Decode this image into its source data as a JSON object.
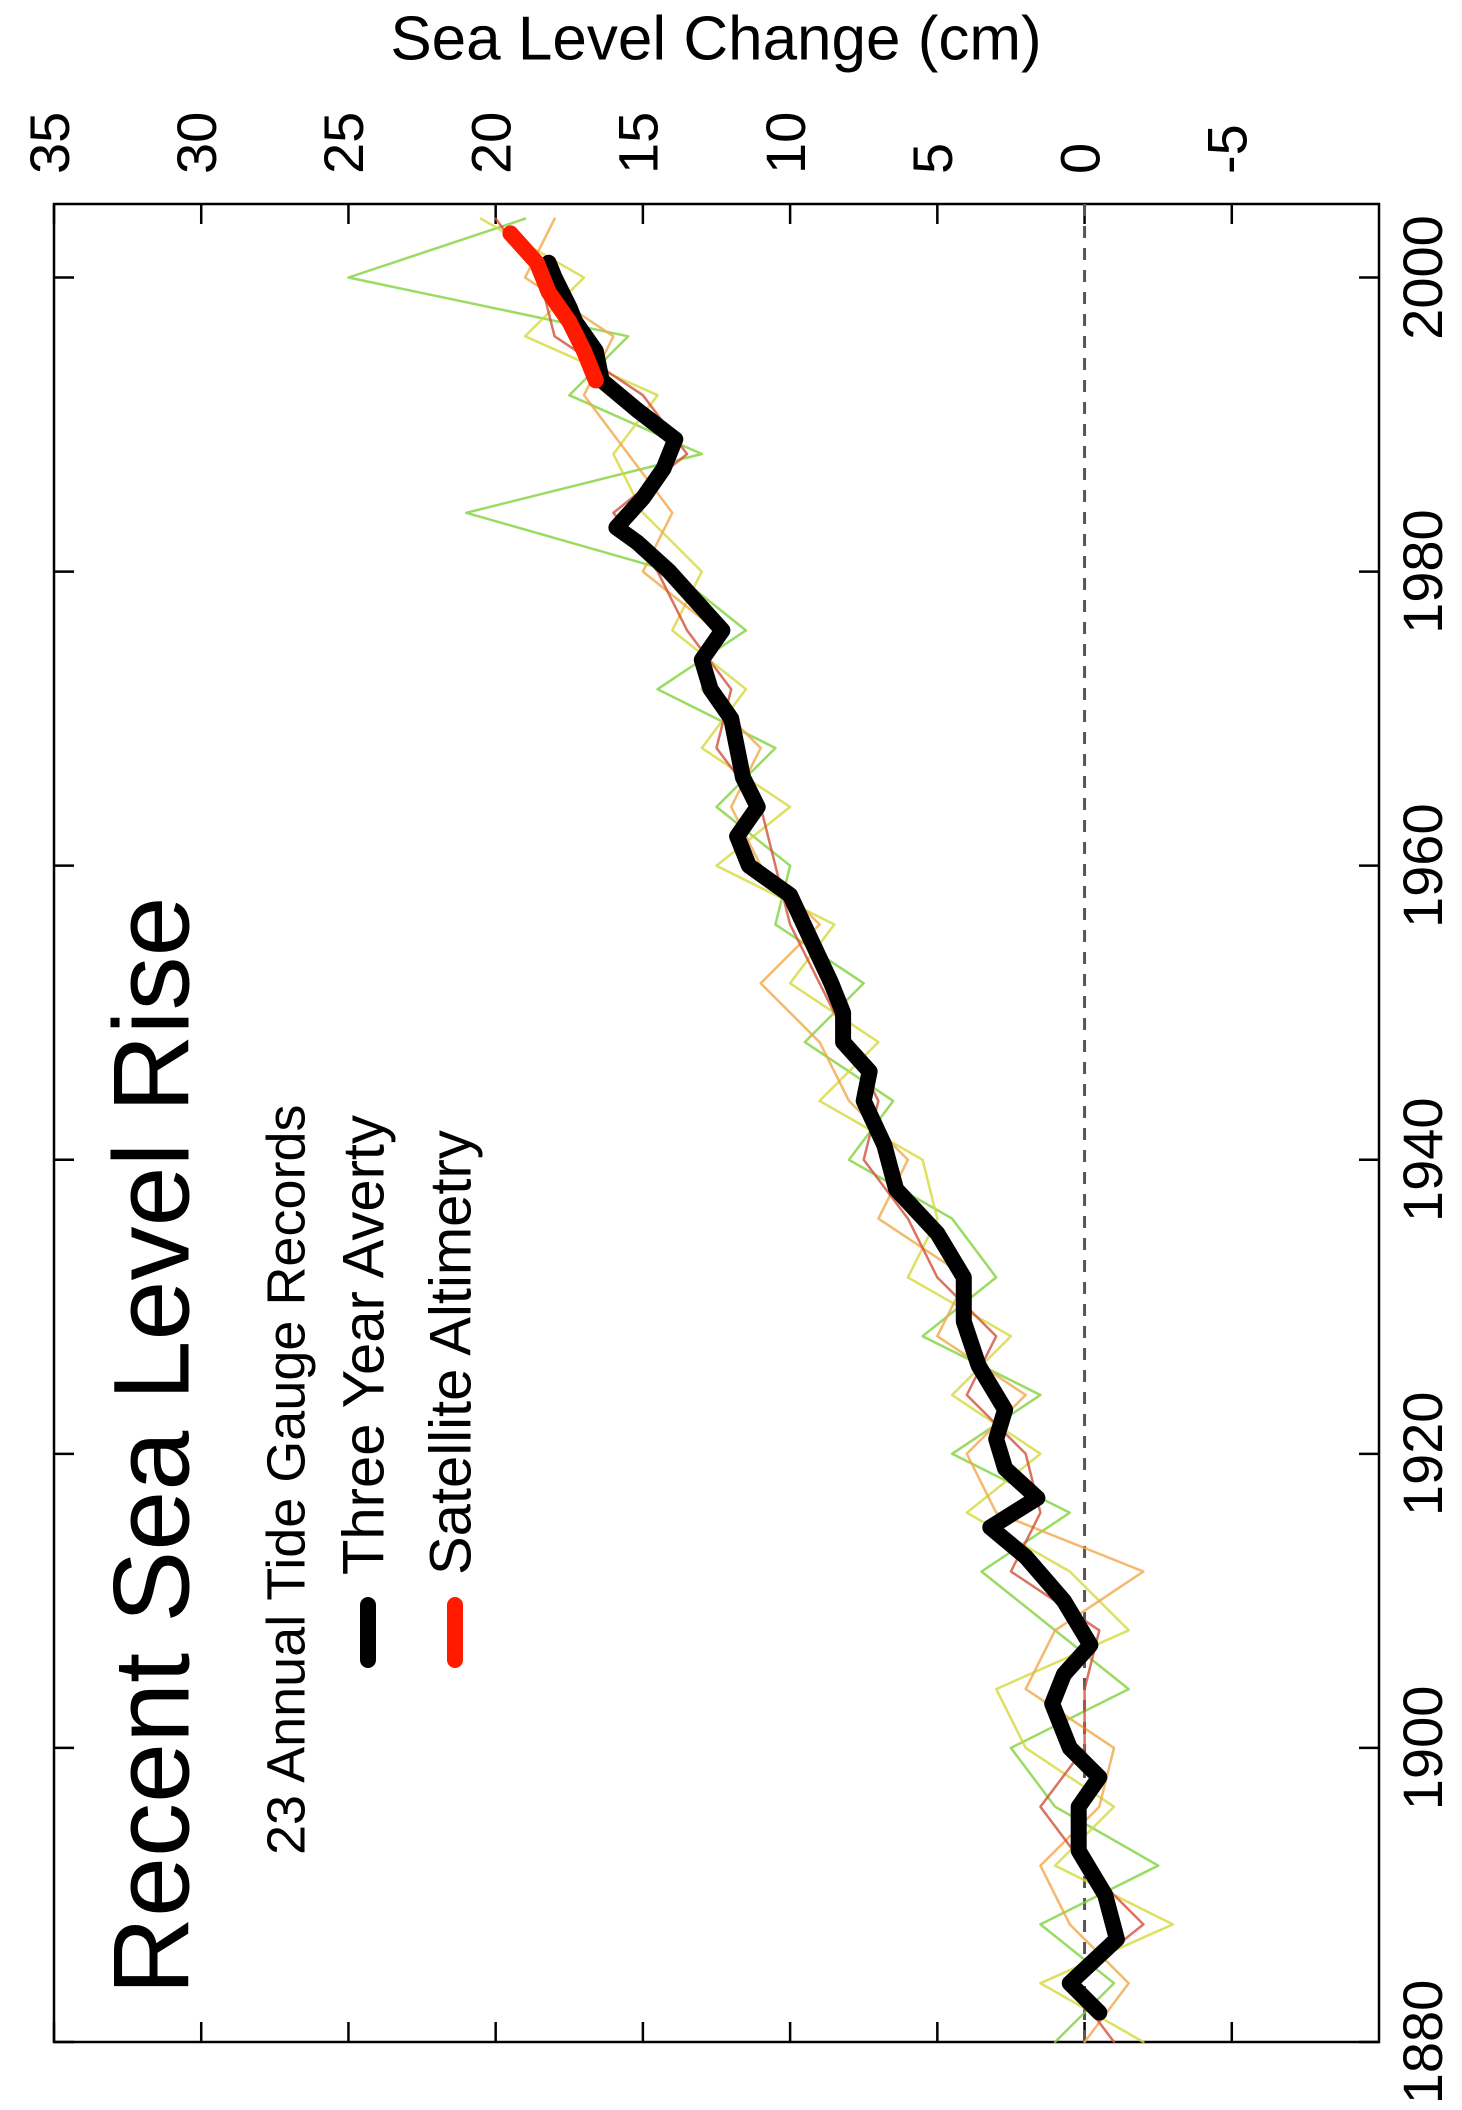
{
  "chart_data": {
    "type": "line",
    "title": "Recent Sea Level Rise",
    "subtitle": "23 Annual Tide Gauge Records",
    "ylabel": "Sea Level Change (cm)",
    "xlim": [
      1880,
      2005
    ],
    "ylim": [
      -10,
      35
    ],
    "xticks": [
      1880,
      1900,
      1920,
      1940,
      1960,
      1980,
      2000
    ],
    "yticks": [
      -5,
      0,
      5,
      10,
      15,
      20,
      25,
      30,
      35
    ],
    "hline": 0,
    "series": [
      {
        "color": "#7fd23c",
        "x": [
          1880,
          1884,
          1888,
          1892,
          1896,
          1900,
          1904,
          1908,
          1912,
          1916,
          1920,
          1924,
          1928,
          1932,
          1936,
          1940,
          1944,
          1948,
          1952,
          1956,
          1960,
          1964,
          1968,
          1972,
          1976,
          1980,
          1984,
          1988,
          1992,
          1996,
          2000,
          2004
        ],
        "values": [
          1,
          -1,
          1.5,
          -2.5,
          1,
          2.5,
          -1.5,
          1,
          3.5,
          0.5,
          4.5,
          1.5,
          5.5,
          3,
          4.5,
          8,
          6.5,
          9.5,
          7.5,
          10.5,
          10,
          12.5,
          10.5,
          14.5,
          11.5,
          14,
          21,
          13,
          17.5,
          15.5,
          25,
          19
        ]
      },
      {
        "color": "#d6d83a",
        "x": [
          1880,
          1884,
          1888,
          1892,
          1896,
          1900,
          1904,
          1908,
          1912,
          1916,
          1920,
          1924,
          1928,
          1932,
          1936,
          1940,
          1944,
          1948,
          1952,
          1956,
          1960,
          1964,
          1968,
          1972,
          1976,
          1980,
          1984,
          1988,
          1992,
          1996,
          2000,
          2004
        ],
        "values": [
          -2,
          1.5,
          -3,
          1,
          -1,
          2,
          3,
          -1.5,
          0.5,
          4,
          1.5,
          4.5,
          2.5,
          6,
          5,
          5.5,
          9,
          7,
          10,
          8.5,
          12.5,
          10,
          13,
          11.5,
          14,
          13,
          15,
          16,
          14.5,
          19,
          17,
          20.5
        ]
      },
      {
        "color": "#f0a848",
        "x": [
          1880,
          1884,
          1888,
          1892,
          1896,
          1900,
          1904,
          1908,
          1912,
          1916,
          1920,
          1924,
          1928,
          1932,
          1936,
          1940,
          1944,
          1948,
          1952,
          1956,
          1960,
          1964,
          1968,
          1972,
          1976,
          1980,
          1984,
          1988,
          1992,
          1996,
          2000,
          2004
        ],
        "values": [
          0,
          -1.5,
          0.5,
          1.5,
          -0.5,
          -1,
          2,
          1,
          -2,
          3,
          4,
          2,
          5,
          4,
          7,
          6,
          8,
          9,
          11,
          9,
          11,
          12,
          11,
          13,
          12.5,
          15,
          14,
          15.5,
          17,
          16,
          19,
          18
        ]
      },
      {
        "color": "#d2503a",
        "x": [
          1880,
          1884,
          1888,
          1892,
          1896,
          1900,
          1904,
          1908,
          1912,
          1916,
          1920,
          1924,
          1928,
          1932,
          1936,
          1940,
          1944,
          1948,
          1952,
          1956,
          1960,
          1964,
          1968,
          1972,
          1976,
          1980,
          1984,
          1988,
          1992,
          1996,
          2000,
          2004
        ],
        "values": [
          -1,
          0.5,
          -2,
          0,
          1.5,
          0,
          0,
          -0.5,
          2.5,
          1.5,
          2,
          4,
          3,
          5,
          6,
          7.5,
          7,
          8,
          9,
          10,
          10.5,
          11,
          12.5,
          12,
          13.5,
          14.5,
          16,
          13.5,
          15,
          18,
          18.5,
          20
        ]
      },
      {
        "name": "Three Year Averty",
        "color": "#000000",
        "x": [
          1882,
          1884,
          1887,
          1890,
          1893,
          1896,
          1898,
          1900,
          1903,
          1905,
          1907,
          1910,
          1913,
          1915,
          1917,
          1919,
          1921,
          1923,
          1926,
          1929,
          1932,
          1935,
          1938,
          1941,
          1944,
          1946,
          1948,
          1950,
          1952,
          1955,
          1958,
          1960,
          1962,
          1964,
          1966,
          1968,
          1970,
          1972,
          1974,
          1976,
          1978,
          1980,
          1982,
          1983,
          1985,
          1987,
          1989,
          1991,
          1993,
          1995,
          1997,
          1998,
          2000,
          2001
        ],
        "values": [
          -0.5,
          0.5,
          -1.1,
          -0.7,
          0.2,
          0.2,
          -0.5,
          0.5,
          1.1,
          0.7,
          -0.2,
          0.7,
          2.0,
          3.2,
          1.6,
          2.7,
          3.0,
          2.7,
          3.6,
          4.1,
          4.1,
          5.0,
          6.4,
          6.8,
          7.5,
          7.3,
          8.2,
          8.2,
          8.6,
          9.3,
          10.0,
          11.4,
          11.8,
          11.1,
          11.6,
          11.8,
          12.0,
          12.7,
          13.0,
          12.3,
          13.2,
          14.1,
          15.2,
          15.9,
          15.0,
          14.3,
          13.9,
          15.2,
          16.4,
          16.6,
          17.3,
          17.5,
          18.0,
          18.2
        ]
      },
      {
        "name": "Satellite Altimetry",
        "color": "#ff1a00",
        "x": [
          1993,
          1995,
          1997,
          1999,
          2001,
          2003
        ],
        "values": [
          16.6,
          17.0,
          17.5,
          18.2,
          18.6,
          19.5
        ]
      }
    ]
  }
}
